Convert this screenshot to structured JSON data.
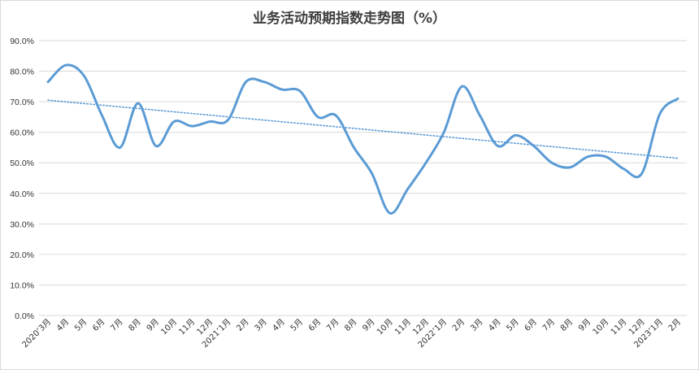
{
  "chart_data": {
    "type": "line",
    "title": "业务活动预期指数走势图（%）",
    "xlabel": "",
    "ylabel": "",
    "ylim": [
      0,
      90
    ],
    "y_tick_labels": [
      "0.0%",
      "10.0%",
      "20.0%",
      "30.0%",
      "40.0%",
      "50.0%",
      "60.0%",
      "70.0%",
      "80.0%",
      "90.0%"
    ],
    "grid": true,
    "legend": "none",
    "categories": [
      "2020’3月",
      "4月",
      "5月",
      "6月",
      "7月",
      "8月",
      "9月",
      "10月",
      "11月",
      "12月",
      "2021’1月",
      "2月",
      "3月",
      "4月",
      "5月",
      "6月",
      "7月",
      "8月",
      "9月",
      "10月",
      "11月",
      "12月",
      "2022’1月",
      "2月",
      "3月",
      "4月",
      "5月",
      "6月",
      "7月",
      "8月",
      "9月",
      "10月",
      "11月",
      "12月",
      "2023’1月",
      "2月"
    ],
    "series": [
      {
        "values": [
          76.5,
          82.0,
          78.5,
          65.5,
          55.0,
          69.5,
          55.5,
          63.5,
          62.0,
          63.5,
          64.0,
          76.5,
          76.5,
          74.0,
          73.5,
          65.0,
          65.5,
          55.0,
          46.5,
          33.5,
          41.5,
          50.0,
          60.0,
          75.0,
          65.5,
          55.5,
          59.0,
          55.5,
          50.0,
          48.5,
          52.0,
          52.0,
          48.0,
          46.5,
          66.0,
          71.0
        ],
        "color": "#5b9bd5"
      }
    ],
    "trendline": {
      "type": "linear",
      "style": "dotted",
      "color": "#5b9bd5",
      "start": 70.5,
      "end": 51.5
    }
  },
  "colors": {
    "grid": "#d9d9d9",
    "line": "#5b9bd5",
    "text": "#404040"
  }
}
